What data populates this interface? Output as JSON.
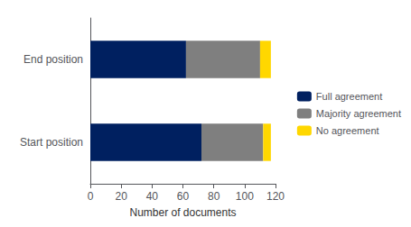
{
  "chart_data": {
    "type": "bar",
    "orientation": "horizontal",
    "stacked": true,
    "categories": [
      "End position",
      "Start position"
    ],
    "series": [
      {
        "name": "Full agreement",
        "color": "#002060",
        "values": [
          62,
          72
        ]
      },
      {
        "name": "Majority agreement",
        "color": "#7f7f7f",
        "values": [
          48,
          40
        ]
      },
      {
        "name": "No agreement",
        "color": "#FFD700",
        "values": [
          7,
          5
        ]
      }
    ],
    "xlabel": "Number of documents",
    "xlim": [
      0,
      120
    ],
    "xticks": [
      0,
      20,
      40,
      60,
      80,
      100,
      120
    ],
    "grid": false,
    "legend": "right"
  }
}
